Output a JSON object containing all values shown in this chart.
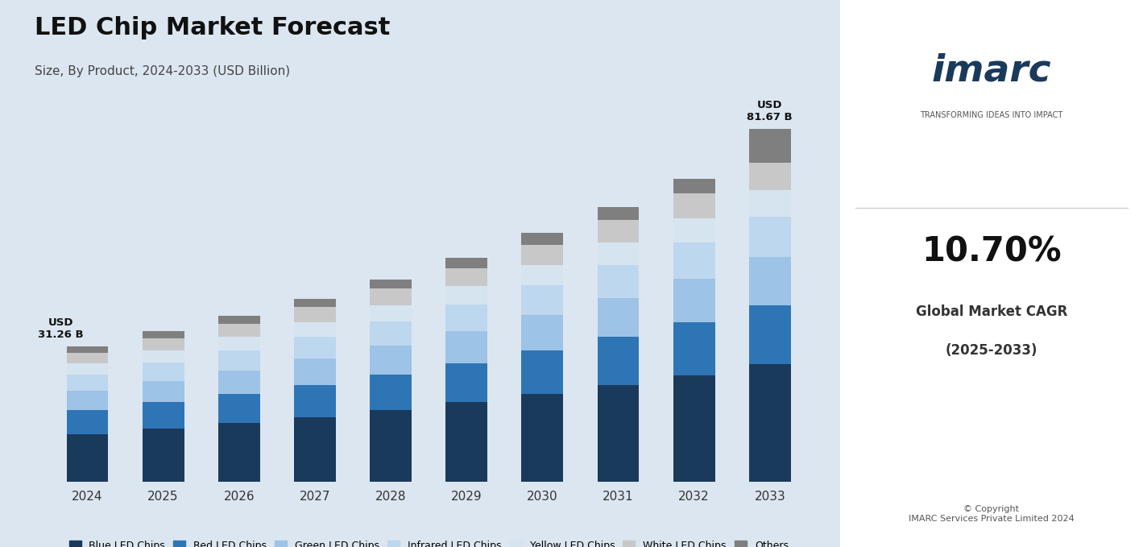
{
  "title": "LED Chip Market Forecast",
  "subtitle": "Size, By Product, 2024-2033 (USD Billion)",
  "years": [
    2024,
    2025,
    2026,
    2027,
    2028,
    2029,
    2030,
    2031,
    2032,
    2033
  ],
  "first_label": "USD\n31.26 B",
  "last_label": "USD\n81.67 B",
  "segments": {
    "Blue LED Chips": [
      11.0,
      12.2,
      13.5,
      14.9,
      16.5,
      18.3,
      20.2,
      22.3,
      24.6,
      27.2
    ],
    "Red LED Chips": [
      5.5,
      6.1,
      6.7,
      7.4,
      8.2,
      9.1,
      10.1,
      11.1,
      12.3,
      13.6
    ],
    "Green LED Chips": [
      4.5,
      5.0,
      5.5,
      6.1,
      6.7,
      7.4,
      8.2,
      9.1,
      10.0,
      11.1
    ],
    "Infrared LED Chips": [
      3.8,
      4.2,
      4.6,
      5.1,
      5.6,
      6.2,
      6.9,
      7.6,
      8.4,
      9.3
    ],
    "Yellow LED Chips": [
      2.5,
      2.8,
      3.1,
      3.4,
      3.8,
      4.2,
      4.7,
      5.2,
      5.7,
      6.3
    ],
    "White LED Chips": [
      2.5,
      2.8,
      3.1,
      3.4,
      3.8,
      4.2,
      4.7,
      5.2,
      5.7,
      6.3
    ],
    "Others": [
      1.46,
      1.62,
      1.79,
      1.98,
      2.2,
      2.43,
      2.69,
      2.97,
      3.28,
      7.87
    ]
  },
  "colors": {
    "Blue LED Chips": "#1a3a5c",
    "Red LED Chips": "#2e75b6",
    "Green LED Chips": "#9dc3e6",
    "Infrared LED Chips": "#bdd7ee",
    "Yellow LED Chips": "#d6e4f0",
    "White LED Chips": "#c8c8c8",
    "Others": "#7f7f7f"
  },
  "background_color": "#dce6f0",
  "bar_width": 0.55,
  "ylim": [
    0,
    95
  ]
}
